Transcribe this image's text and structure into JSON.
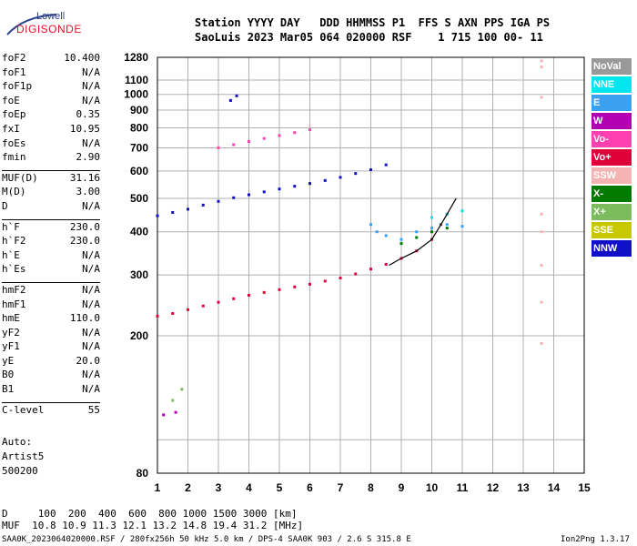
{
  "logo": {
    "line1": "Lowell",
    "line2": "DIGISONDE"
  },
  "header": {
    "line1": "Station YYYY DAY   DDD HHMMSS P1  FFS S AXN PPS IGA PS",
    "line2": "SaoLuis 2023 Mar05 064 020000 RSF    1 715 100 00- 11"
  },
  "params": {
    "group1": [
      {
        "name": "foF2",
        "value": "10.400"
      },
      {
        "name": "foF1",
        "value": "N/A"
      },
      {
        "name": "foF1p",
        "value": "N/A"
      },
      {
        "name": "foE",
        "value": "N/A"
      },
      {
        "name": "foEp",
        "value": "0.35"
      },
      {
        "name": "fxI",
        "value": "10.95"
      },
      {
        "name": "foEs",
        "value": "N/A"
      },
      {
        "name": "fmin",
        "value": "2.90"
      }
    ],
    "group2": [
      {
        "name": "MUF(D)",
        "value": "31.16"
      },
      {
        "name": "M(D)",
        "value": "3.00"
      },
      {
        "name": "D",
        "value": "N/A"
      }
    ],
    "group3": [
      {
        "name": "h`F",
        "value": "230.0"
      },
      {
        "name": "h`F2",
        "value": "230.0"
      },
      {
        "name": "h`E",
        "value": "N/A"
      },
      {
        "name": "h`Es",
        "value": "N/A"
      }
    ],
    "group4": [
      {
        "name": "hmF2",
        "value": "N/A"
      },
      {
        "name": "hmF1",
        "value": "N/A"
      },
      {
        "name": "hmE",
        "value": "110.0"
      },
      {
        "name": "yF2",
        "value": "N/A"
      },
      {
        "name": "yF1",
        "value": "N/A"
      },
      {
        "name": "yE",
        "value": "20.0"
      },
      {
        "name": "B0",
        "value": "N/A"
      },
      {
        "name": "B1",
        "value": "N/A"
      }
    ],
    "group5": [
      {
        "name": "C-level",
        "value": "55"
      }
    ]
  },
  "auto": {
    "line1": "Auto:",
    "line2": "Artist5",
    "line3": "500200"
  },
  "legend": [
    {
      "label": "NoVal",
      "bg": "#999999",
      "fg": "#ffffff"
    },
    {
      "label": "NNE",
      "bg": "#00e5ee",
      "fg": "#ffffff"
    },
    {
      "label": "E",
      "bg": "#3ca0f0",
      "fg": "#ffffff"
    },
    {
      "label": "W",
      "bg": "#b000b0",
      "fg": "#ffffff"
    },
    {
      "label": "Vo-",
      "bg": "#ff40b0",
      "fg": "#ffffff"
    },
    {
      "label": "Vo+",
      "bg": "#e0003a",
      "fg": "#ffffff"
    },
    {
      "label": "SSW",
      "bg": "#f4b4b4",
      "fg": "#ffffff"
    },
    {
      "label": "X-",
      "bg": "#007a00",
      "fg": "#ffffff"
    },
    {
      "label": "X+",
      "bg": "#7cbc5c",
      "fg": "#ffffff"
    },
    {
      "label": "SSE",
      "bg": "#c8c800",
      "fg": "#ffffff"
    },
    {
      "label": "NNW",
      "bg": "#1010c8",
      "fg": "#ffffff"
    }
  ],
  "bottom": {
    "line1": "D     100  200  400  600  800 1000 1500 3000 [km]",
    "line2": "MUF  10.8 10.9 11.3 12.1 13.2 14.8 19.4 31.2 [MHz]"
  },
  "footer": {
    "left": "SAA0K_2023064020000.RSF / 280fx256h 50 kHz 5.0 km / DPS-4 SAA0K 903 / 2.6 S 315.8 E",
    "right": "Ion2Png 1.3.17"
  },
  "chart_data": {
    "type": "scatter",
    "title": "",
    "xlabel": "",
    "ylabel": "",
    "xlim": [
      1,
      15
    ],
    "ylim": [
      80,
      1280
    ],
    "y_scale": "log",
    "x_ticks": [
      "1",
      "2",
      "3",
      "4",
      "5",
      "6",
      "7",
      "8",
      "9",
      "10",
      "11",
      "12",
      "13",
      "14",
      "15"
    ],
    "y_ticks": [
      80,
      100,
      200,
      300,
      400,
      500,
      600,
      700,
      800,
      900,
      1000,
      1100,
      1280
    ],
    "y_tick_labels": [
      "80",
      "",
      "200",
      "300",
      "400",
      "500",
      "600",
      "700",
      "800",
      "900",
      "1000",
      "1100",
      "1280"
    ],
    "grid": true,
    "legend_position": "right",
    "series": [
      {
        "color": "#e0003a",
        "points": [
          [
            1.0,
            228
          ],
          [
            1.5,
            232
          ],
          [
            2.0,
            238
          ],
          [
            2.5,
            244
          ],
          [
            3.0,
            250
          ],
          [
            3.5,
            256
          ],
          [
            4.0,
            262
          ],
          [
            4.5,
            267
          ],
          [
            5.0,
            272
          ],
          [
            5.5,
            277
          ],
          [
            6.0,
            282
          ],
          [
            6.5,
            288
          ],
          [
            7.0,
            294
          ],
          [
            7.5,
            302
          ],
          [
            8.0,
            312
          ],
          [
            8.5,
            322
          ],
          [
            9.0,
            335
          ],
          [
            9.5,
            352
          ],
          [
            10.0,
            380
          ],
          [
            10.3,
            420
          ],
          [
            10.5,
            450
          ]
        ]
      },
      {
        "color": "#1010c8",
        "points": [
          [
            1.0,
            445
          ],
          [
            1.5,
            455
          ],
          [
            2.0,
            465
          ],
          [
            2.5,
            478
          ],
          [
            3.0,
            490
          ],
          [
            3.5,
            502
          ],
          [
            4.0,
            512
          ],
          [
            4.5,
            522
          ],
          [
            5.0,
            532
          ],
          [
            5.5,
            542
          ],
          [
            6.0,
            552
          ],
          [
            6.5,
            563
          ],
          [
            7.0,
            575
          ],
          [
            7.5,
            590
          ],
          [
            8.0,
            605
          ],
          [
            8.5,
            625
          ]
        ]
      },
      {
        "color": "#ff40b0",
        "points": [
          [
            3.0,
            700
          ],
          [
            3.5,
            715
          ],
          [
            4.0,
            730
          ],
          [
            4.5,
            745
          ],
          [
            5.0,
            760
          ],
          [
            5.5,
            775
          ],
          [
            6.0,
            790
          ]
        ]
      },
      {
        "color": "#3ca0f0",
        "points": [
          [
            8.0,
            420
          ],
          [
            8.2,
            400
          ],
          [
            8.5,
            390
          ],
          [
            9.0,
            380
          ],
          [
            9.5,
            400
          ],
          [
            10.0,
            410
          ],
          [
            10.5,
            420
          ],
          [
            11.0,
            415
          ]
        ]
      },
      {
        "color": "#007a00",
        "points": [
          [
            9.0,
            370
          ],
          [
            9.5,
            385
          ],
          [
            10.0,
            400
          ],
          [
            10.5,
            410
          ]
        ]
      },
      {
        "color": "#00e5ee",
        "points": [
          [
            10.0,
            440
          ],
          [
            10.5,
            450
          ],
          [
            11.0,
            460
          ]
        ]
      },
      {
        "color": "#f4b4b4",
        "points": [
          [
            13.6,
            1250
          ],
          [
            13.6,
            1200
          ],
          [
            13.6,
            980
          ],
          [
            13.6,
            450
          ],
          [
            13.6,
            400
          ],
          [
            13.6,
            320
          ],
          [
            13.6,
            250
          ],
          [
            13.6,
            190
          ]
        ]
      },
      {
        "color": "#7cbc5c",
        "points": [
          [
            1.5,
            130
          ],
          [
            1.8,
            140
          ]
        ]
      },
      {
        "color": "#b000b0",
        "points": [
          [
            1.2,
            118
          ],
          [
            1.6,
            120
          ]
        ]
      },
      {
        "color": "#1010c8",
        "points": [
          [
            3.4,
            960
          ],
          [
            3.6,
            990
          ]
        ]
      }
    ],
    "trace": {
      "color": "#000000",
      "points": [
        [
          8.6,
          320
        ],
        [
          9.0,
          335
        ],
        [
          9.5,
          352
        ],
        [
          10.0,
          380
        ],
        [
          10.3,
          420
        ],
        [
          10.5,
          450
        ],
        [
          10.8,
          500
        ]
      ]
    }
  }
}
